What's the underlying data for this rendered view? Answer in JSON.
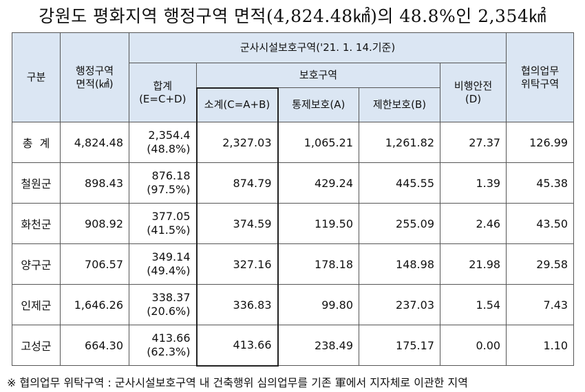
{
  "title": "강원도 평화지역 행정구역 면적(4,824.48㎢)의 48.8%인 2,354㎢",
  "headers": {
    "category": "구분",
    "admin_area": "행정구역\n면적(㎢)",
    "military_zone": "군사시설보호구역('21. 1. 14.기준)",
    "protection_zone": "보호구역",
    "total": "합계\n(E=C+D)",
    "subtotal": "소계(C=A+B)",
    "control": "통제보호(A)",
    "restricted": "제한보호(B)",
    "flight": "비행안전\n(D)",
    "consult": "협의업무\n위탁구역"
  },
  "rows": [
    {
      "label": "총  계",
      "area": "4,824.48",
      "total": "2,354.4",
      "total_pct": "(48.8%)",
      "subtotal": "2,327.03",
      "control": "1,065.21",
      "restricted": "1,261.82",
      "flight": "27.37",
      "consult": "126.99"
    },
    {
      "label": "철원군",
      "area": "898.43",
      "total": "876.18",
      "total_pct": "(97.5%)",
      "subtotal": "874.79",
      "control": "429.24",
      "restricted": "445.55",
      "flight": "1.39",
      "consult": "45.38"
    },
    {
      "label": "화천군",
      "area": "908.92",
      "total": "377.05",
      "total_pct": "(41.5%)",
      "subtotal": "374.59",
      "control": "119.50",
      "restricted": "255.09",
      "flight": "2.46",
      "consult": "43.50"
    },
    {
      "label": "양구군",
      "area": "706.57",
      "total": "349.14",
      "total_pct": "(49.4%)",
      "subtotal": "327.16",
      "control": "178.18",
      "restricted": "148.98",
      "flight": "21.98",
      "consult": "29.58"
    },
    {
      "label": "인제군",
      "area": "1,646.26",
      "total": "338.37",
      "total_pct": "(20.6%)",
      "subtotal": "336.83",
      "control": "99.80",
      "restricted": "237.03",
      "flight": "1.54",
      "consult": "7.43"
    },
    {
      "label": "고성군",
      "area": "664.30",
      "total": "413.66",
      "total_pct": "(62.3%)",
      "subtotal": "413.66",
      "control": "238.49",
      "restricted": "175.17",
      "flight": "0.00",
      "consult": "1.10"
    }
  ],
  "footnote": "※ 협의업무 위탁구역 : 군사시설보호구역 내 건축행위 심의업무를 기존 軍에서 지자체로 이관한 지역",
  "colors": {
    "header_bg": "#dbe6f3",
    "border": "#555555",
    "subtotal_border": "#222222"
  }
}
